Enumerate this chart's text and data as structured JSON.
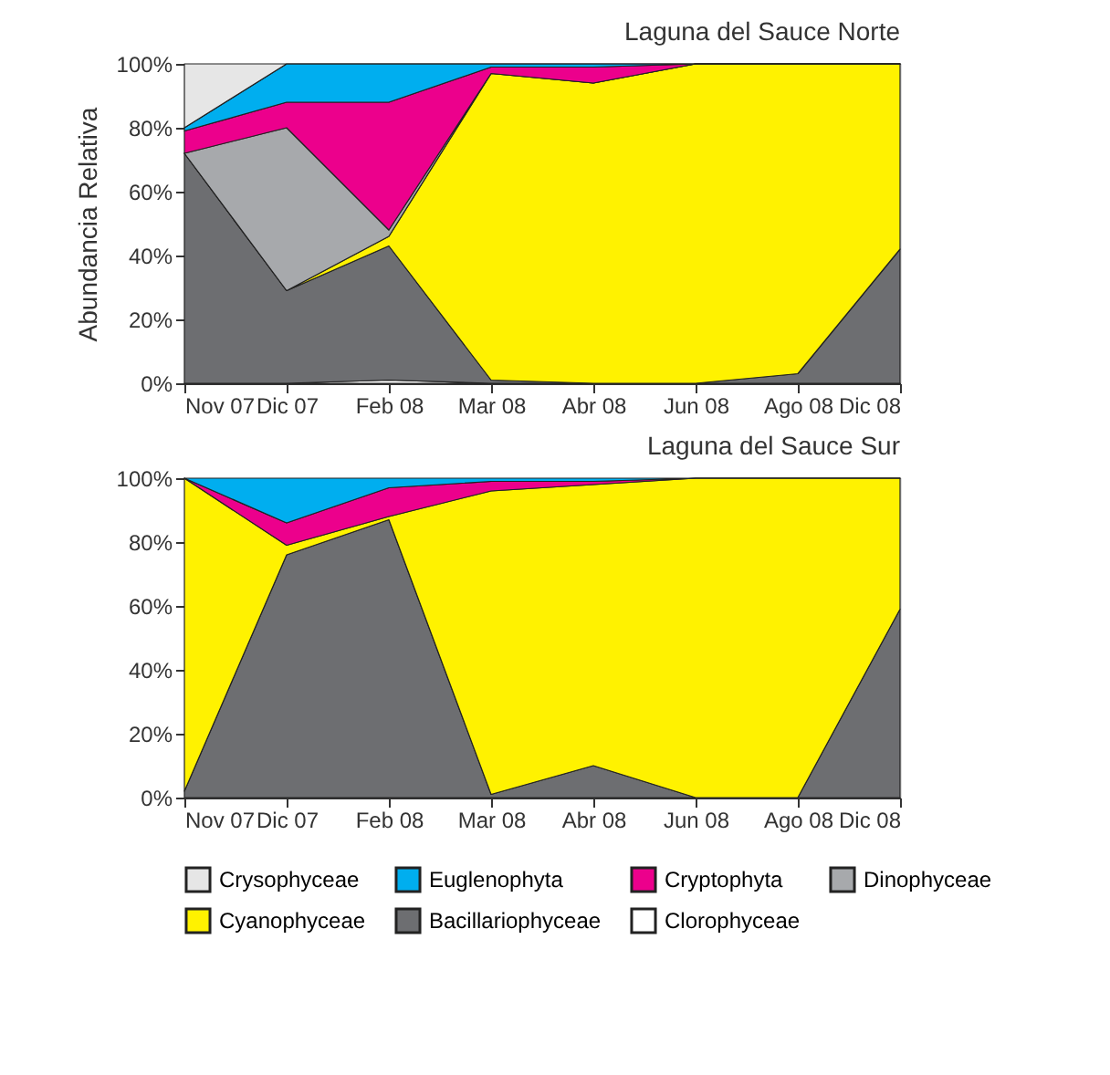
{
  "chart_data": [
    {
      "type": "area",
      "title": "Laguna del Sauce Norte",
      "ylabel": "Abundancia Relativa",
      "stacked": true,
      "legend": "bottom",
      "categories": [
        "Nov 07",
        "Dic 07",
        "Feb 08",
        "Mar 08",
        "Abr 08",
        "Jun 08",
        "Ago 08",
        "Dic 08"
      ],
      "ylim": [
        0,
        100
      ],
      "yticks": [
        {
          "value": 0,
          "label": "0%"
        },
        {
          "value": 20,
          "label": "20%"
        },
        {
          "value": 40,
          "label": "40%"
        },
        {
          "value": 60,
          "label": "60%"
        },
        {
          "value": 80,
          "label": "80%"
        },
        {
          "value": 100,
          "label": "100%"
        }
      ],
      "series": [
        {
          "name": "Clorophyceae",
          "color": "#ffffff",
          "values": [
            0,
            0,
            1,
            0,
            0,
            0,
            0,
            0
          ]
        },
        {
          "name": "Bacillariophyceae",
          "color": "#6d6e71",
          "values": [
            72,
            29,
            42,
            1,
            0,
            0,
            3,
            42
          ]
        },
        {
          "name": "Cyanophyceae",
          "color": "#fff200",
          "values": [
            0,
            0,
            3,
            96,
            94,
            100,
            97,
            58
          ]
        },
        {
          "name": "Dinophyceae",
          "color": "#a7a9ac",
          "values": [
            0,
            51,
            2,
            0,
            0,
            0,
            0,
            0
          ]
        },
        {
          "name": "Cryptophyta",
          "color": "#ec008c",
          "values": [
            7,
            8,
            40,
            2,
            5,
            0,
            0,
            0
          ]
        },
        {
          "name": "Euglenophyta",
          "color": "#00aeef",
          "values": [
            1,
            12,
            12,
            1,
            1,
            0,
            0,
            0
          ]
        },
        {
          "name": "Crysophyceae",
          "color": "#e6e6e6",
          "values": [
            20,
            0,
            0,
            0,
            0,
            0,
            0,
            0
          ]
        }
      ]
    },
    {
      "type": "area",
      "title": "Laguna del Sauce Sur",
      "stacked": true,
      "legend": "bottom",
      "categories": [
        "Nov 07",
        "Dic 07",
        "Feb 08",
        "Mar 08",
        "Abr 08",
        "Jun 08",
        "Ago 08",
        "Dic 08"
      ],
      "ylim": [
        0,
        100
      ],
      "yticks": [
        {
          "value": 0,
          "label": "0%"
        },
        {
          "value": 20,
          "label": "20%"
        },
        {
          "value": 40,
          "label": "40%"
        },
        {
          "value": 60,
          "label": "60%"
        },
        {
          "value": 80,
          "label": "80%"
        },
        {
          "value": 100,
          "label": "100%"
        }
      ],
      "series": [
        {
          "name": "Bacillariophyceae",
          "color": "#6d6e71",
          "values": [
            2,
            76,
            87,
            1,
            10,
            0,
            0,
            59
          ]
        },
        {
          "name": "Cyanophyceae",
          "color": "#fff200",
          "values": [
            98,
            3,
            1,
            95,
            88,
            100,
            100,
            41
          ]
        },
        {
          "name": "Cryptophyta",
          "color": "#ec008c",
          "values": [
            0,
            7,
            9,
            3,
            1,
            0,
            0,
            0
          ]
        },
        {
          "name": "Euglenophyta",
          "color": "#00aeef",
          "values": [
            0,
            14,
            3,
            1,
            1,
            0,
            0,
            0
          ]
        }
      ]
    }
  ]
}
